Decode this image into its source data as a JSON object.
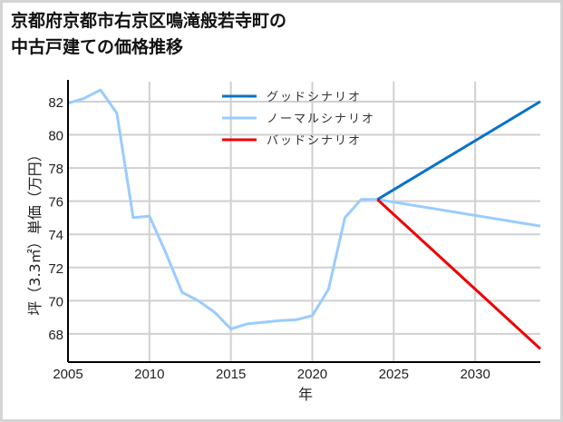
{
  "title": {
    "line1": "京都府京都市右京区鳴滝般若寺町の",
    "line2": "中古戸建ての価格推移"
  },
  "chart_data": {
    "type": "line",
    "title": "京都府京都市右京区鳴滝般若寺町の中古戸建ての価格推移",
    "xlabel": "年",
    "ylabel": "坪（3.3㎡）単価（万円）",
    "xlim": [
      2005,
      2034
    ],
    "ylim": [
      66.3,
      83.2
    ],
    "xticks": [
      2005,
      2010,
      2015,
      2020,
      2025,
      2030
    ],
    "yticks": [
      68,
      70,
      72,
      74,
      76,
      78,
      80,
      82
    ],
    "grid": true,
    "legend_position": "upper center",
    "series": [
      {
        "name": "グッドシナリオ",
        "color": "#0a72c8",
        "x": [
          2024,
          2034
        ],
        "values": [
          76.1,
          82.0
        ]
      },
      {
        "name": "ノーマルシナリオ",
        "color": "#99ccff",
        "x": [
          2005,
          2006,
          2007,
          2008,
          2009,
          2010,
          2011,
          2012,
          2013,
          2014,
          2015,
          2016,
          2017,
          2018,
          2019,
          2020,
          2021,
          2022,
          2023,
          2024,
          2034
        ],
        "values": [
          81.9,
          82.2,
          82.7,
          81.3,
          75.0,
          75.1,
          72.9,
          70.5,
          70.0,
          69.3,
          68.3,
          68.6,
          68.7,
          68.8,
          68.85,
          69.1,
          70.7,
          75.0,
          76.1,
          76.1,
          74.5
        ]
      },
      {
        "name": "バッドシナリオ",
        "color": "#ee0000",
        "x": [
          2024,
          2034
        ],
        "values": [
          76.1,
          67.1
        ]
      }
    ]
  },
  "colors": {
    "grid": "#d0d0d0",
    "axis": "#000000",
    "border": "#d4d4d4"
  }
}
